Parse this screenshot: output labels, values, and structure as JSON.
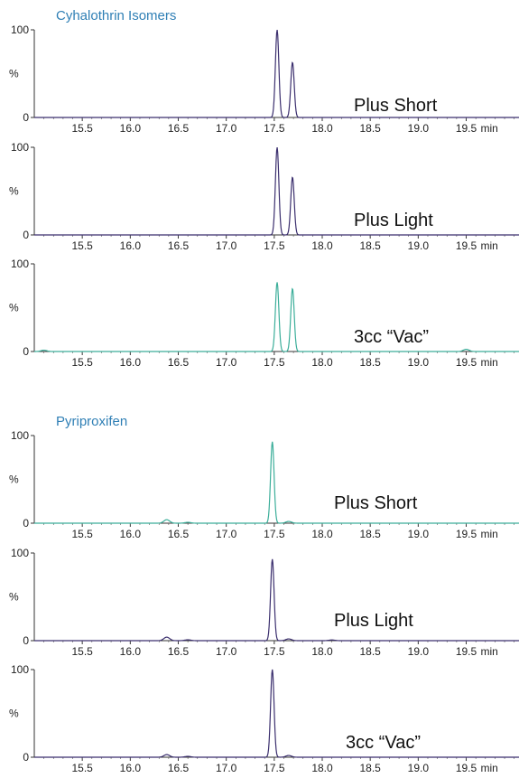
{
  "chart_data": [
    {
      "type": "line",
      "title": "Cyhalothrin Isomers",
      "title_color": "#2f7fb5",
      "x_unit": "min",
      "xlim": [
        15.0,
        20.05
      ],
      "x_ticks": [
        15.5,
        16.0,
        16.5,
        17.0,
        17.5,
        18.0,
        18.5,
        19.0,
        19.5
      ],
      "x_tick_labels": [
        "15.5",
        "16.0",
        "16.5",
        "17.0",
        "17.5",
        "18.0",
        "18.5",
        "19.0",
        "19.5"
      ],
      "y_label": "%",
      "ylim": [
        0,
        100
      ],
      "y_tick_labels": [
        "100",
        "0"
      ],
      "panels": [
        {
          "label": "Plus Short",
          "color": "#3b2f6e",
          "peaks": [
            {
              "x": 17.53,
              "y": 100
            },
            {
              "x": 17.69,
              "y": 63
            }
          ]
        },
        {
          "label": "Plus Light",
          "color": "#3b2f6e",
          "peaks": [
            {
              "x": 17.53,
              "y": 100
            },
            {
              "x": 17.69,
              "y": 66
            }
          ]
        },
        {
          "label": "3cc “Vac”",
          "color": "#3cae9a",
          "peaks": [
            {
              "x": 15.1,
              "y": 1.5
            },
            {
              "x": 17.53,
              "y": 79
            },
            {
              "x": 17.69,
              "y": 72
            },
            {
              "x": 19.5,
              "y": 2.5
            }
          ]
        }
      ]
    },
    {
      "type": "line",
      "title": "Pyriproxifen",
      "title_color": "#2f7fb5",
      "x_unit": "min",
      "xlim": [
        15.0,
        20.05
      ],
      "x_ticks": [
        15.5,
        16.0,
        16.5,
        17.0,
        17.5,
        18.0,
        18.5,
        19.0,
        19.5
      ],
      "x_tick_labels": [
        "15.5",
        "16.0",
        "16.5",
        "17.0",
        "17.5",
        "18.0",
        "18.5",
        "19.0",
        "19.5"
      ],
      "y_label": "%",
      "ylim": [
        0,
        100
      ],
      "y_tick_labels": [
        "100",
        "0"
      ],
      "panels": [
        {
          "label": "Plus Short",
          "color": "#3cae9a",
          "peaks": [
            {
              "x": 16.38,
              "y": 4
            },
            {
              "x": 16.6,
              "y": 1
            },
            {
              "x": 17.48,
              "y": 93
            },
            {
              "x": 17.65,
              "y": 2
            }
          ]
        },
        {
          "label": "Plus Light",
          "color": "#3b2f6e",
          "peaks": [
            {
              "x": 16.38,
              "y": 4
            },
            {
              "x": 16.6,
              "y": 1
            },
            {
              "x": 17.48,
              "y": 93
            },
            {
              "x": 17.65,
              "y": 2
            },
            {
              "x": 18.1,
              "y": 0.8
            }
          ]
        },
        {
          "label": "3cc “Vac”",
          "color": "#3b2f6e",
          "peaks": [
            {
              "x": 16.38,
              "y": 3
            },
            {
              "x": 16.6,
              "y": 1
            },
            {
              "x": 17.48,
              "y": 100
            },
            {
              "x": 17.65,
              "y": 2
            }
          ]
        }
      ]
    }
  ]
}
